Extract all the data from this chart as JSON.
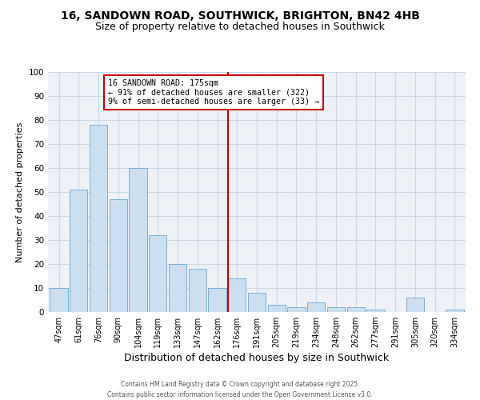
{
  "title1": "16, SANDOWN ROAD, SOUTHWICK, BRIGHTON, BN42 4HB",
  "title2": "Size of property relative to detached houses in Southwick",
  "xlabel": "Distribution of detached houses by size in Southwick",
  "ylabel": "Number of detached properties",
  "bar_labels": [
    "47sqm",
    "61sqm",
    "76sqm",
    "90sqm",
    "104sqm",
    "119sqm",
    "133sqm",
    "147sqm",
    "162sqm",
    "176sqm",
    "191sqm",
    "205sqm",
    "219sqm",
    "234sqm",
    "248sqm",
    "262sqm",
    "277sqm",
    "291sqm",
    "305sqm",
    "320sqm",
    "334sqm"
  ],
  "bar_values": [
    10,
    51,
    78,
    47,
    60,
    32,
    20,
    18,
    10,
    14,
    8,
    3,
    2,
    4,
    2,
    2,
    1,
    0,
    6,
    0,
    1
  ],
  "bar_color": "#ccdff0",
  "bar_edgecolor": "#7bafd4",
  "vline_color": "#cc0000",
  "annotation_box_text": "16 SANDOWN ROAD: 175sqm\n← 91% of detached houses are smaller (322)\n9% of semi-detached houses are larger (33) →",
  "annotation_box_color": "#cc0000",
  "ylim": [
    0,
    100
  ],
  "yticks": [
    0,
    10,
    20,
    30,
    40,
    50,
    60,
    70,
    80,
    90,
    100
  ],
  "grid_color": "#c8d8e8",
  "background_color": "#eef2f7",
  "footer1": "Contains HM Land Registry data © Crown copyright and database right 2025.",
  "footer2": "Contains public sector information licensed under the Open Government Licence v3.0.",
  "title_fontsize": 10,
  "subtitle_fontsize": 9,
  "xlabel_fontsize": 9,
  "ylabel_fontsize": 8
}
